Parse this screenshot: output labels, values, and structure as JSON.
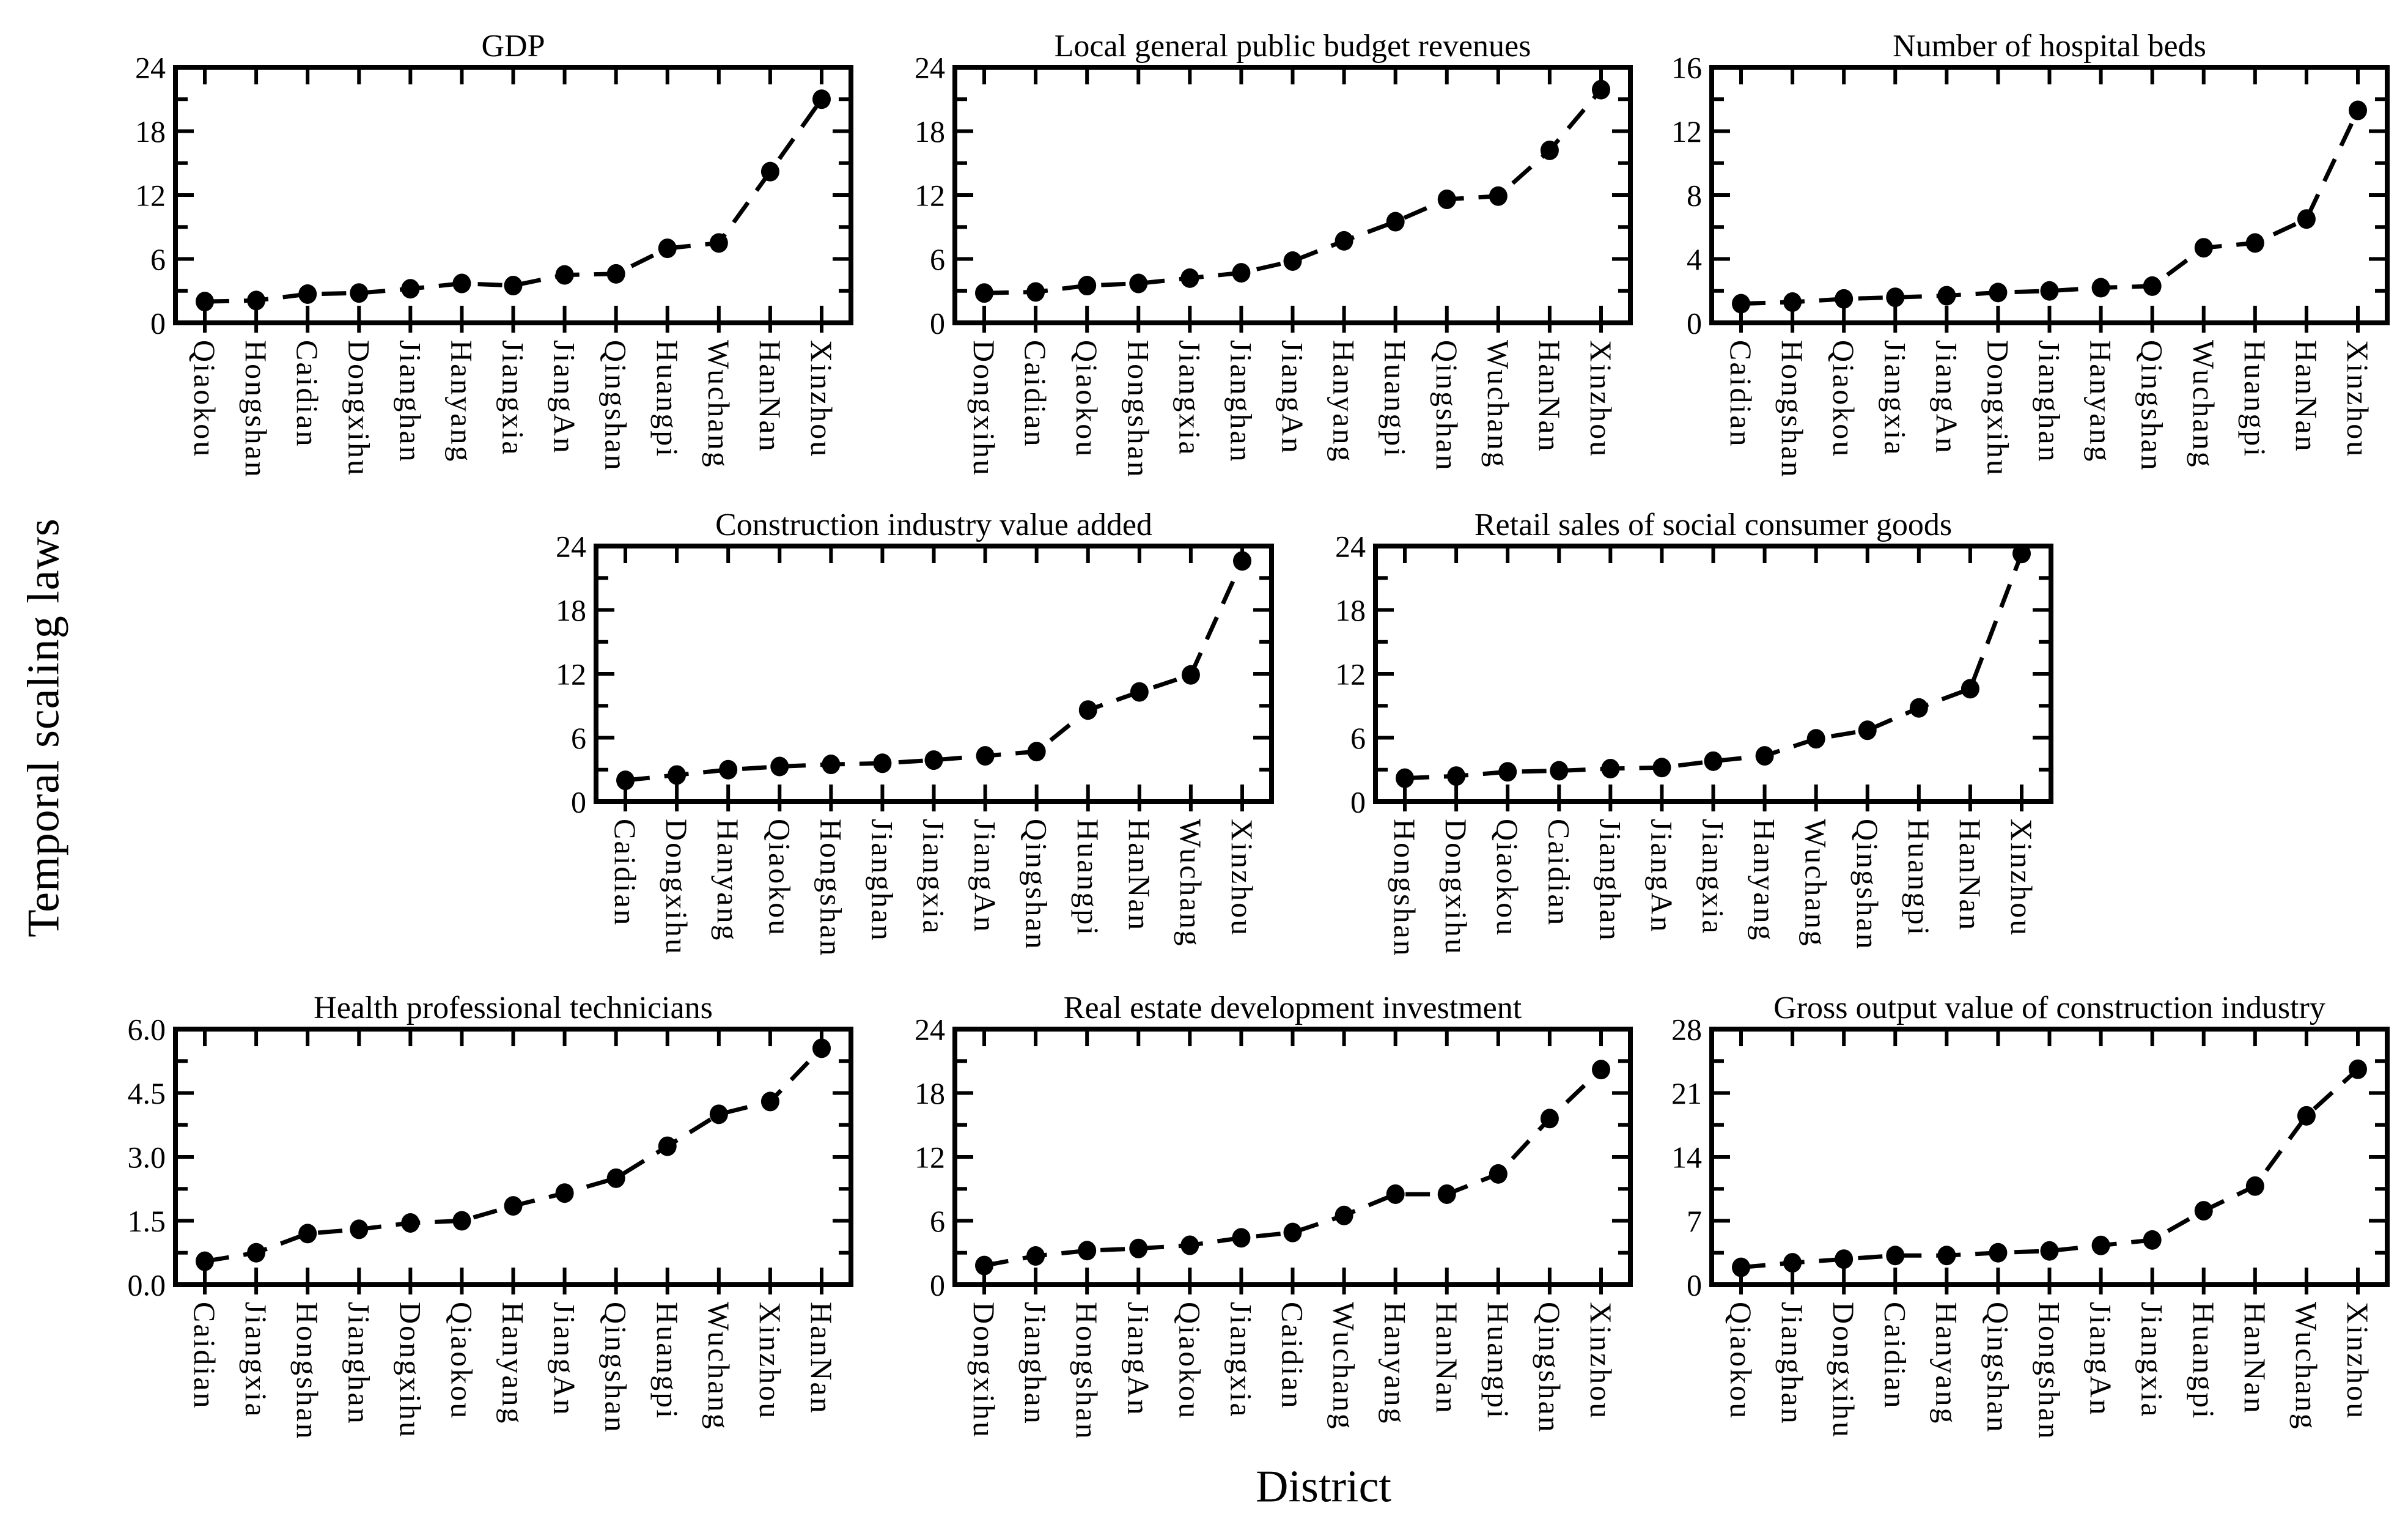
{
  "figure": {
    "ylabel": "Temporal scaling laws",
    "xlabel": "District",
    "background": "#ffffff",
    "ink": "#000000"
  },
  "chart_data": [
    {
      "type": "line",
      "slug": "gdp",
      "title": "GDP",
      "categories": [
        "Qiaokou",
        "Hongshan",
        "Caidian",
        "Dongxihu",
        "Jianghan",
        "Hanyang",
        "Jiangxia",
        "JiangAn",
        "Qingshan",
        "Huangpi",
        "Wuchang",
        "HanNan",
        "Xinzhou"
      ],
      "values": [
        2.0,
        2.1,
        2.7,
        2.8,
        3.2,
        3.7,
        3.5,
        4.5,
        4.6,
        7.0,
        7.5,
        14.2,
        21.0
      ],
      "ylim": [
        0,
        24
      ],
      "yticks": [
        0,
        6,
        12,
        18,
        24
      ],
      "ytick_labels": [
        "0",
        "6",
        "12",
        "18",
        "24"
      ],
      "marker": "filled-ellipse",
      "line_style": "dashed",
      "line_color": "#000000",
      "grid": false,
      "legend": false
    },
    {
      "type": "line",
      "slug": "budget-revenues",
      "title": "Local general public budget revenues",
      "categories": [
        "Dongxihu",
        "Caidian",
        "Qiaokou",
        "Hongshan",
        "Jiangxia",
        "Jianghan",
        "JiangAn",
        "Hanyang",
        "Huangpi",
        "Qingshan",
        "Wuchang",
        "HanNan",
        "Xinzhou"
      ],
      "values": [
        2.8,
        2.9,
        3.5,
        3.7,
        4.2,
        4.7,
        5.8,
        7.7,
        9.5,
        11.6,
        11.9,
        16.2,
        21.9
      ],
      "ylim": [
        0,
        24
      ],
      "yticks": [
        0,
        6,
        12,
        18,
        24
      ],
      "ytick_labels": [
        "0",
        "6",
        "12",
        "18",
        "24"
      ],
      "marker": "filled-ellipse",
      "line_style": "dashed",
      "line_color": "#000000",
      "grid": false,
      "legend": false
    },
    {
      "type": "line",
      "slug": "hospital-beds",
      "title": "Number of hospital beds",
      "categories": [
        "Caidian",
        "Hongshan",
        "Qiaokou",
        "Jiangxia",
        "JiangAn",
        "Dongxihu",
        "Jianghan",
        "Hanyang",
        "Qingshan",
        "Wuchang",
        "Huangpi",
        "HanNan",
        "Xinzhou"
      ],
      "values": [
        1.2,
        1.3,
        1.5,
        1.6,
        1.7,
        1.9,
        2.0,
        2.2,
        2.3,
        4.7,
        5.0,
        6.5,
        13.3
      ],
      "ylim": [
        0,
        16
      ],
      "yticks": [
        0,
        4,
        8,
        12,
        16
      ],
      "ytick_labels": [
        "0",
        "4",
        "8",
        "12",
        "16"
      ],
      "marker": "filled-ellipse",
      "line_style": "dashed",
      "line_color": "#000000",
      "grid": false,
      "legend": false
    },
    {
      "type": "line",
      "slug": "construction-value-added",
      "title": "Construction industry value added",
      "categories": [
        "Caidian",
        "Dongxihu",
        "Hanyang",
        "Qiaokou",
        "Hongshan",
        "Jianghan",
        "Jiangxia",
        "JiangAn",
        "Qingshan",
        "Huangpi",
        "HanNan",
        "Wuchang",
        "Xinzhou"
      ],
      "values": [
        2.0,
        2.5,
        3.0,
        3.3,
        3.5,
        3.6,
        3.9,
        4.3,
        4.7,
        8.6,
        10.3,
        11.9,
        22.6
      ],
      "ylim": [
        0,
        24
      ],
      "yticks": [
        0,
        6,
        12,
        18,
        24
      ],
      "ytick_labels": [
        "0",
        "6",
        "12",
        "18",
        "24"
      ],
      "marker": "filled-ellipse",
      "line_style": "dashed",
      "line_color": "#000000",
      "grid": false,
      "legend": false
    },
    {
      "type": "line",
      "slug": "retail-sales",
      "title": "Retail sales of social consumer goods",
      "categories": [
        "Hongshan",
        "Dongxihu",
        "Qiaokou",
        "Caidian",
        "Jianghan",
        "JiangAn",
        "Jiangxia",
        "Hanyang",
        "Wuchang",
        "Qingshan",
        "Huangpi",
        "HanNan",
        "Xinzhou"
      ],
      "values": [
        2.2,
        2.4,
        2.8,
        2.9,
        3.1,
        3.2,
        3.8,
        4.3,
        5.9,
        6.7,
        8.8,
        10.6,
        23.3
      ],
      "ylim": [
        0,
        24
      ],
      "yticks": [
        0,
        6,
        12,
        18,
        24
      ],
      "ytick_labels": [
        "0",
        "6",
        "12",
        "18",
        "24"
      ],
      "marker": "filled-ellipse",
      "line_style": "dashed",
      "line_color": "#000000",
      "grid": false,
      "legend": false
    },
    {
      "type": "line",
      "slug": "health-technicians",
      "title": "Health professional technicians",
      "categories": [
        "Caidian",
        "Jiangxia",
        "Hongshan",
        "Jianghan",
        "Dongxihu",
        "Qiaokou",
        "Hanyang",
        "JiangAn",
        "Qingshan",
        "Huangpi",
        "Wuchang",
        "Xinzhou",
        "HanNan"
      ],
      "values": [
        0.55,
        0.75,
        1.2,
        1.3,
        1.45,
        1.5,
        1.85,
        2.15,
        2.5,
        3.25,
        4.0,
        4.3,
        5.55
      ],
      "ylim": [
        0,
        6
      ],
      "yticks": [
        0,
        1.5,
        3,
        4.5,
        6
      ],
      "ytick_labels": [
        "0.0",
        "1.5",
        "3.0",
        "4.5",
        "6.0"
      ],
      "marker": "filled-ellipse",
      "line_style": "dashed",
      "line_color": "#000000",
      "grid": false,
      "legend": false
    },
    {
      "type": "line",
      "slug": "real-estate-investment",
      "title": "Real estate development investment",
      "categories": [
        "Dongxihu",
        "Jianghan",
        "Hongshan",
        "JiangAn",
        "Qiaokou",
        "Jiangxia",
        "Caidian",
        "Wuchang",
        "Hanyang",
        "HanNan",
        "Huangpi",
        "Qingshan",
        "Xinzhou"
      ],
      "values": [
        1.8,
        2.7,
        3.2,
        3.4,
        3.7,
        4.4,
        4.9,
        6.5,
        8.5,
        8.5,
        10.4,
        15.6,
        20.2
      ],
      "ylim": [
        0,
        24
      ],
      "yticks": [
        0,
        6,
        12,
        18,
        24
      ],
      "ytick_labels": [
        "0",
        "6",
        "12",
        "18",
        "24"
      ],
      "marker": "filled-ellipse",
      "line_style": "dashed",
      "line_color": "#000000",
      "grid": false,
      "legend": false
    },
    {
      "type": "line",
      "slug": "construction-gross-output",
      "title": "Gross output value of construction industry",
      "categories": [
        "Qiaokou",
        "Jianghan",
        "Dongxihu",
        "Caidian",
        "Hanyang",
        "Qingshan",
        "Hongshan",
        "JiangAn",
        "Jiangxia",
        "Huangpi",
        "HanNan",
        "Wuchang",
        "Xinzhou"
      ],
      "values": [
        1.9,
        2.4,
        2.8,
        3.2,
        3.2,
        3.5,
        3.7,
        4.3,
        4.9,
        8.1,
        10.8,
        18.5,
        23.6
      ],
      "ylim": [
        0,
        28
      ],
      "yticks": [
        0,
        7,
        14,
        21,
        28
      ],
      "ytick_labels": [
        "0",
        "7",
        "14",
        "21",
        "28"
      ],
      "marker": "filled-ellipse",
      "line_style": "dashed",
      "line_color": "#000000",
      "grid": false,
      "legend": false
    }
  ]
}
